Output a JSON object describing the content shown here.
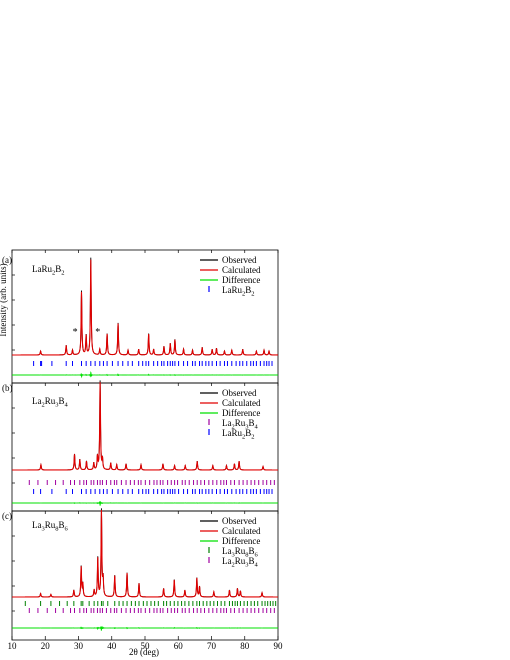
{
  "chart_data": {
    "type": "line",
    "xlabel": "2θ (deg)",
    "ylabel": "Intensity (arb. units)",
    "xlim": [
      10,
      90
    ],
    "x_ticks": [
      "10",
      "20",
      "30",
      "40",
      "50",
      "60",
      "70",
      "80",
      "90"
    ],
    "colors": {
      "observed": "#000000",
      "calculated": "#e00000",
      "difference": "#00e000",
      "larub2_ticks": "#0000ff",
      "la2ru3b4_ticks": "#a000a0",
      "la3ru8b6_ticks": "#008000"
    },
    "panels": [
      {
        "panel_label": "(a)",
        "compound": "LaRu",
        "compound_sub1": "2",
        "compound_mid": "B",
        "compound_sub2": "2",
        "legend": [
          "Observed",
          "Calculated",
          "Difference"
        ],
        "phase_legend": [
          {
            "pre": "LaRu",
            "s1": "2",
            "mid": "B",
            "s2": "2",
            "color": "#0000ff"
          }
        ],
        "impurity_marker": "*",
        "impurity_peaks": [
          29.0,
          35.8
        ],
        "peaks": [
          {
            "x": 18.6,
            "h": 0.04
          },
          {
            "x": 26.3,
            "h": 0.1
          },
          {
            "x": 28.2,
            "h": 0.05
          },
          {
            "x": 30.9,
            "h": 0.66
          },
          {
            "x": 32.3,
            "h": 0.2
          },
          {
            "x": 33.7,
            "h": 1.0
          },
          {
            "x": 36.4,
            "h": 0.06
          },
          {
            "x": 38.6,
            "h": 0.22
          },
          {
            "x": 41.9,
            "h": 0.33
          },
          {
            "x": 44.9,
            "h": 0.05
          },
          {
            "x": 48.1,
            "h": 0.06
          },
          {
            "x": 51.1,
            "h": 0.22
          },
          {
            "x": 52.6,
            "h": 0.06
          },
          {
            "x": 55.7,
            "h": 0.09
          },
          {
            "x": 57.6,
            "h": 0.12
          },
          {
            "x": 59.0,
            "h": 0.16
          },
          {
            "x": 61.6,
            "h": 0.06
          },
          {
            "x": 64.3,
            "h": 0.05
          },
          {
            "x": 67.2,
            "h": 0.08
          },
          {
            "x": 70.2,
            "h": 0.06
          },
          {
            "x": 71.5,
            "h": 0.07
          },
          {
            "x": 73.9,
            "h": 0.04
          },
          {
            "x": 76.1,
            "h": 0.05
          },
          {
            "x": 79.4,
            "h": 0.06
          },
          {
            "x": 83.5,
            "h": 0.04
          },
          {
            "x": 85.8,
            "h": 0.05
          },
          {
            "x": 87.3,
            "h": 0.04
          }
        ],
        "tick_rows": [
          {
            "phase": "LaRu2B2",
            "positions": [
              16.5,
              18.6,
              18.9,
              22.0,
              26.3,
              28.2,
              30.9,
              32.3,
              33.7,
              35.0,
              36.4,
              37.5,
              38.6,
              40.2,
              41.9,
              43.3,
              44.9,
              46.2,
              48.1,
              49.3,
              50.3,
              51.1,
              52.6,
              53.8,
              55.0,
              55.7,
              56.8,
              57.6,
              58.3,
              59.0,
              60.1,
              61.6,
              62.8,
              64.3,
              65.1,
              66.4,
              67.2,
              68.3,
              69.2,
              70.2,
              71.5,
              72.6,
              73.9,
              74.8,
              76.1,
              77.4,
              78.5,
              79.4,
              80.6,
              81.8,
              82.6,
              83.5,
              84.7,
              85.8,
              86.6,
              87.3,
              88.2
            ]
          }
        ]
      },
      {
        "panel_label": "(b)",
        "compound": "La",
        "compound_sub1": "2",
        "compound_mid": "Ru",
        "compound_sub2": "3",
        "compound_end": "B",
        "compound_sub3": "4",
        "legend": [
          "Observed",
          "Calculated",
          "Difference"
        ],
        "phase_legend": [
          {
            "pre": "La",
            "s1": "2",
            "mid": "Ru",
            "s2": "3",
            "end": "B",
            "s3": "4",
            "color": "#a000a0"
          },
          {
            "pre": "LaRu",
            "s1": "2",
            "mid": "B",
            "s2": "2",
            "color": "#0000ff"
          }
        ],
        "peaks": [
          {
            "x": 18.7,
            "h": 0.06
          },
          {
            "x": 28.8,
            "h": 0.18
          },
          {
            "x": 30.4,
            "h": 0.12
          },
          {
            "x": 32.4,
            "h": 0.1
          },
          {
            "x": 34.6,
            "h": 0.08
          },
          {
            "x": 35.7,
            "h": 0.15
          },
          {
            "x": 36.5,
            "h": 1.0
          },
          {
            "x": 37.2,
            "h": 0.12
          },
          {
            "x": 39.7,
            "h": 0.08
          },
          {
            "x": 41.5,
            "h": 0.06
          },
          {
            "x": 44.3,
            "h": 0.07
          },
          {
            "x": 48.8,
            "h": 0.06
          },
          {
            "x": 55.4,
            "h": 0.07
          },
          {
            "x": 58.9,
            "h": 0.05
          },
          {
            "x": 62.1,
            "h": 0.05
          },
          {
            "x": 65.7,
            "h": 0.1
          },
          {
            "x": 70.4,
            "h": 0.05
          },
          {
            "x": 74.5,
            "h": 0.05
          },
          {
            "x": 76.9,
            "h": 0.07
          },
          {
            "x": 78.3,
            "h": 0.1
          },
          {
            "x": 85.5,
            "h": 0.04
          }
        ],
        "tick_rows": [
          {
            "phase": "La2Ru3B4",
            "positions": [
              15.2,
              17.8,
              20.6,
              23.1,
              25.4,
              27.6,
              28.8,
              30.4,
              31.6,
              32.4,
              33.8,
              34.6,
              35.7,
              36.5,
              37.2,
              38.4,
              39.7,
              40.8,
              41.5,
              42.9,
              44.3,
              45.6,
              46.8,
              48.0,
              48.8,
              50.1,
              51.4,
              52.7,
              53.6,
              54.6,
              55.4,
              56.8,
              57.9,
              58.9,
              59.8,
              61.2,
              62.1,
              63.3,
              64.6,
              65.7,
              66.8,
              67.9,
              69.2,
              70.4,
              71.6,
              72.8,
              73.7,
              74.5,
              75.8,
              76.9,
              78.3,
              79.5,
              80.7,
              81.9,
              83.0,
              84.2,
              85.5,
              86.6,
              87.8,
              88.9
            ]
          },
          {
            "phase": "LaRu2B2",
            "positions": [
              16.5,
              18.6,
              22.0,
              26.3,
              28.2,
              30.9,
              32.3,
              33.7,
              35.0,
              36.4,
              37.5,
              38.6,
              40.2,
              41.9,
              43.3,
              44.9,
              46.2,
              48.1,
              49.3,
              50.3,
              51.1,
              52.6,
              53.8,
              55.0,
              55.7,
              56.8,
              57.6,
              58.3,
              59.0,
              60.1,
              61.6,
              62.8,
              64.3,
              65.1,
              66.4,
              67.2,
              68.3,
              69.2,
              70.2,
              71.5,
              72.6,
              73.9,
              74.8,
              76.1,
              77.4,
              78.5,
              79.4,
              80.6,
              81.8,
              82.6,
              83.5,
              84.7,
              85.8,
              86.6,
              87.3,
              88.2
            ]
          }
        ]
      },
      {
        "panel_label": "(c)",
        "compound": "La",
        "compound_sub1": "3",
        "compound_mid": "Ru",
        "compound_sub2": "8",
        "compound_end": "B",
        "compound_sub3": "6",
        "legend": [
          "Observed",
          "Calculated",
          "Difference"
        ],
        "phase_legend": [
          {
            "pre": "La",
            "s1": "3",
            "mid": "Ru",
            "s2": "8",
            "end": "B",
            "s3": "6",
            "color": "#008000"
          },
          {
            "pre": "La",
            "s1": "2",
            "mid": "Ru",
            "s2": "3",
            "end": "B",
            "s3": "4",
            "color": "#a000a0"
          }
        ],
        "peaks": [
          {
            "x": 18.6,
            "h": 0.04
          },
          {
            "x": 21.7,
            "h": 0.03
          },
          {
            "x": 28.6,
            "h": 0.08
          },
          {
            "x": 30.8,
            "h": 0.35
          },
          {
            "x": 31.3,
            "h": 0.15
          },
          {
            "x": 34.7,
            "h": 0.08
          },
          {
            "x": 35.8,
            "h": 0.45
          },
          {
            "x": 36.9,
            "h": 1.0
          },
          {
            "x": 37.4,
            "h": 0.2
          },
          {
            "x": 40.9,
            "h": 0.25
          },
          {
            "x": 44.6,
            "h": 0.28
          },
          {
            "x": 48.2,
            "h": 0.16
          },
          {
            "x": 55.6,
            "h": 0.1
          },
          {
            "x": 58.8,
            "h": 0.2
          },
          {
            "x": 62.0,
            "h": 0.08
          },
          {
            "x": 65.6,
            "h": 0.22
          },
          {
            "x": 66.4,
            "h": 0.12
          },
          {
            "x": 70.7,
            "h": 0.06
          },
          {
            "x": 75.4,
            "h": 0.08
          },
          {
            "x": 77.8,
            "h": 0.1
          },
          {
            "x": 78.7,
            "h": 0.07
          },
          {
            "x": 85.2,
            "h": 0.05
          }
        ],
        "tick_rows": [
          {
            "phase": "La3Ru8B6",
            "positions": [
              14.0,
              18.6,
              21.7,
              24.3,
              26.6,
              28.6,
              30.8,
              31.3,
              33.2,
              34.7,
              35.8,
              36.9,
              37.4,
              38.8,
              40.9,
              42.2,
              43.4,
              44.6,
              45.9,
              47.1,
              48.2,
              49.5,
              50.6,
              51.8,
              52.9,
              54.0,
              55.6,
              56.5,
              57.6,
              58.8,
              59.9,
              61.0,
              62.0,
              63.2,
              64.4,
              65.6,
              66.4,
              67.5,
              68.6,
              69.6,
              70.7,
              71.8,
              72.9,
              74.0,
              75.4,
              76.3,
              77.1,
              77.8,
              78.7,
              79.8,
              80.8,
              81.9,
              82.9,
              83.9,
              85.2,
              86.1,
              86.9,
              87.7,
              88.5,
              89.3
            ]
          },
          {
            "phase": "La2Ru3B4",
            "positions": [
              15.2,
              17.8,
              20.6,
              23.1,
              25.4,
              27.6,
              28.8,
              30.4,
              31.6,
              32.4,
              33.8,
              34.6,
              35.7,
              36.5,
              37.2,
              38.4,
              39.7,
              40.8,
              41.5,
              42.9,
              44.3,
              45.6,
              46.8,
              48.0,
              48.8,
              50.1,
              51.4,
              52.7,
              53.6,
              54.6,
              55.4,
              56.8,
              57.9,
              58.9,
              59.8,
              61.2,
              62.1,
              63.3,
              64.6,
              65.7,
              66.8,
              67.9,
              69.2,
              70.4,
              71.6,
              72.8,
              73.7,
              74.5,
              75.8,
              76.9,
              78.3,
              79.5,
              80.7,
              81.9,
              83.0,
              84.2,
              85.5,
              86.6,
              87.8,
              88.9
            ]
          }
        ]
      }
    ]
  }
}
